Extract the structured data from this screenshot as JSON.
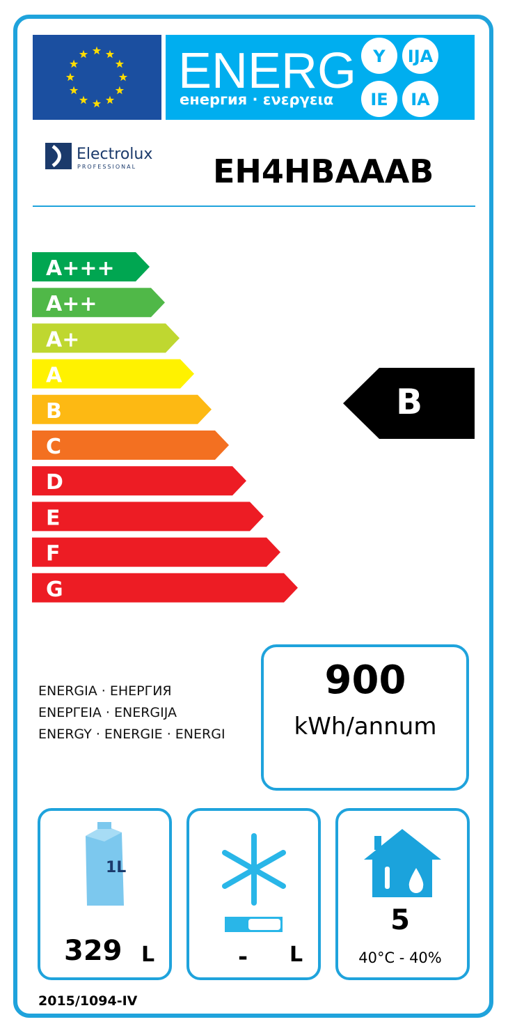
{
  "header": {
    "title": "ENERG",
    "subtitle": "енергия · ενεργεια",
    "suffixes": [
      "Y",
      "IJA",
      "IE",
      "IA"
    ]
  },
  "brand": {
    "name": "Electrolux",
    "tagline": "PROFESSIONAL"
  },
  "model": "EH4HBAAAB",
  "classes": [
    {
      "label": "A+++",
      "color": "#00a651"
    },
    {
      "label": "A++",
      "color": "#50b848"
    },
    {
      "label": "A+",
      "color": "#bfd730"
    },
    {
      "label": "A",
      "color": "#fff200"
    },
    {
      "label": "B",
      "color": "#fdb913"
    },
    {
      "label": "C",
      "color": "#f37021"
    },
    {
      "label": "D",
      "color": "#ed1c24"
    },
    {
      "label": "E",
      "color": "#ed1c24"
    },
    {
      "label": "F",
      "color": "#ed1c24"
    },
    {
      "label": "G",
      "color": "#ed1c24"
    }
  ],
  "rating": "B",
  "energy_words": [
    "ENERGIA · ЕНЕРГИЯ",
    "ΕΝΕΡΓΕΙΑ · ENERGIJA",
    "ENERGY · ENERGIE · ENERGI"
  ],
  "consumption": {
    "value": 900,
    "unit": "kWh/annum"
  },
  "fresh": {
    "icon_label": "1L",
    "value": 329,
    "unit": "L"
  },
  "freezer": {
    "value": "-",
    "unit": "L"
  },
  "climate": {
    "class": 5,
    "range": "40°C - 40%"
  },
  "regulation": "2015/1094-IV"
}
